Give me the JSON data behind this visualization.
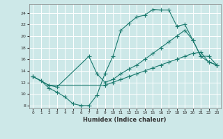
{
  "xlabel": "Humidex (Indice chaleur)",
  "ylabel": "",
  "background_color": "#cde8e8",
  "grid_color": "#ffffff",
  "line_color": "#1a7a6e",
  "xlim": [
    -0.5,
    23.5
  ],
  "ylim": [
    7.5,
    25.5
  ],
  "xticks": [
    0,
    1,
    2,
    3,
    4,
    5,
    6,
    7,
    8,
    9,
    10,
    11,
    12,
    13,
    14,
    15,
    16,
    17,
    18,
    19,
    20,
    21,
    22,
    23
  ],
  "yticks": [
    8,
    10,
    12,
    14,
    16,
    18,
    20,
    22,
    24
  ],
  "line1_x": [
    0,
    1,
    2,
    3,
    4,
    5,
    6,
    7,
    8,
    9,
    10,
    11,
    12,
    13,
    14,
    15,
    16,
    17,
    18,
    19,
    20,
    21,
    22,
    23
  ],
  "line1_y": [
    13.0,
    12.3,
    11.0,
    10.3,
    9.5,
    8.3,
    8.0,
    8.0,
    9.8,
    13.5,
    16.5,
    21.0,
    22.2,
    23.3,
    23.6,
    24.6,
    24.5,
    24.5,
    21.7,
    22.0,
    19.3,
    16.5,
    15.5,
    15.0
  ],
  "line2_x": [
    0,
    2,
    3,
    7,
    8,
    9,
    10,
    11,
    12,
    13,
    14,
    15,
    16,
    17,
    18,
    19,
    20,
    21,
    22,
    23
  ],
  "line2_y": [
    13.0,
    11.5,
    11.2,
    16.5,
    13.5,
    12.0,
    12.5,
    13.5,
    14.3,
    15.0,
    16.0,
    17.0,
    18.0,
    19.0,
    20.0,
    21.0,
    19.3,
    16.5,
    16.5,
    15.0
  ],
  "line3_x": [
    0,
    2,
    9,
    10,
    11,
    12,
    13,
    14,
    15,
    16,
    17,
    18,
    19,
    20,
    21,
    22,
    23
  ],
  "line3_y": [
    13.0,
    11.5,
    11.5,
    12.0,
    12.5,
    13.0,
    13.5,
    14.0,
    14.5,
    15.0,
    15.5,
    16.0,
    16.5,
    17.0,
    17.2,
    15.5,
    15.0
  ]
}
